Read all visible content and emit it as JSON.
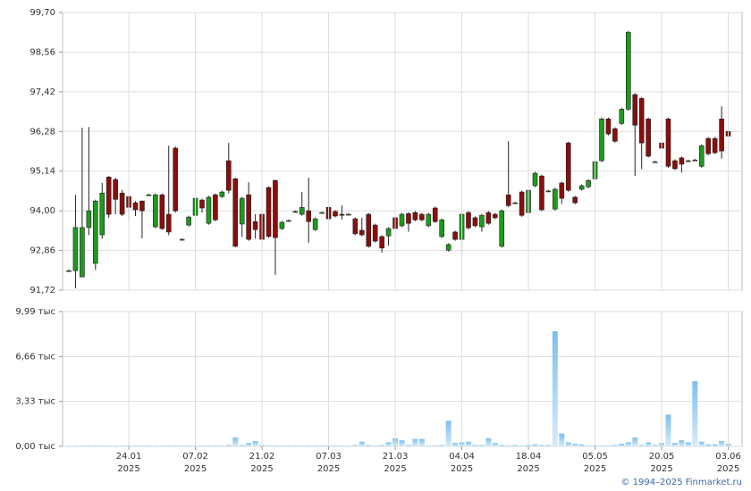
{
  "chart_data": [
    {
      "type": "candlestick",
      "up_color": "#1e9a1e",
      "down_color": "#8b0d0d",
      "ylim": [
        91.72,
        99.7
      ],
      "yticks": [
        {
          "value": 91.72,
          "label": "91,72"
        },
        {
          "value": 92.86,
          "label": "92,86"
        },
        {
          "value": 94.0,
          "label": "94,00"
        },
        {
          "value": 95.14,
          "label": "95,14"
        },
        {
          "value": 96.28,
          "label": "96,28"
        },
        {
          "value": 97.42,
          "label": "97,42"
        },
        {
          "value": 98.56,
          "label": "98,56"
        },
        {
          "value": 99.7,
          "label": "99,70"
        }
      ],
      "grid": true,
      "open": [
        92.28,
        92.28,
        92.1,
        93.52,
        92.49,
        93.31,
        94.97,
        94.9,
        94.51,
        94.41,
        94.23,
        94.28,
        94.46,
        93.54,
        94.46,
        93.9,
        95.8,
        93.18,
        93.59,
        93.87,
        94.31,
        93.64,
        94.46,
        94.41,
        95.44,
        94.92,
        93.62,
        94.46,
        93.69,
        93.9,
        94.67,
        94.87,
        93.49,
        93.72,
        93.98,
        93.9,
        94.0,
        93.46,
        93.95,
        94.1,
        93.98,
        93.9,
        93.9,
        93.77,
        93.44,
        93.9,
        93.59,
        93.26,
        93.28,
        93.8,
        93.57,
        93.92,
        93.95,
        93.9,
        93.57,
        94.08,
        93.26,
        92.87,
        93.39,
        93.18,
        93.95,
        93.8,
        93.54,
        93.95,
        93.9,
        92.98,
        94.46,
        94.23,
        94.54,
        93.95,
        94.72,
        95.0,
        94.57,
        94.05,
        94.8,
        95.95,
        94.39,
        94.62,
        94.69,
        94.92,
        95.44,
        96.64,
        96.36,
        96.51,
        96.92,
        97.34,
        97.23,
        96.64,
        95.41,
        95.95,
        96.64,
        95.44,
        95.52,
        95.44,
        95.46,
        95.28,
        96.08,
        96.08,
        96.64,
        96.28
      ],
      "high": [
        92.31,
        94.46,
        96.39,
        96.41,
        94.32,
        94.8,
        95.0,
        94.95,
        94.6,
        94.45,
        94.28,
        94.3,
        94.49,
        94.5,
        94.5,
        95.87,
        95.85,
        93.21,
        93.86,
        94.4,
        94.35,
        94.43,
        94.5,
        94.58,
        95.95,
        94.95,
        94.4,
        94.82,
        93.9,
        93.95,
        94.7,
        94.9,
        93.71,
        93.75,
        94.01,
        94.54,
        94.95,
        93.81,
        93.98,
        94.14,
        94.02,
        94.15,
        93.93,
        93.81,
        93.8,
        93.94,
        93.63,
        93.3,
        93.53,
        93.84,
        93.94,
        93.96,
        93.99,
        93.94,
        93.94,
        94.12,
        93.78,
        93.07,
        93.43,
        93.94,
        93.99,
        93.84,
        93.91,
        93.99,
        93.94,
        94.04,
        96.0,
        94.26,
        94.58,
        94.63,
        95.12,
        95.04,
        94.6,
        94.66,
        94.84,
        95.99,
        94.43,
        94.76,
        94.91,
        95.45,
        96.68,
        96.68,
        96.4,
        96.96,
        99.17,
        97.38,
        97.27,
        96.68,
        95.44,
        95.99,
        96.68,
        95.48,
        95.56,
        95.47,
        95.49,
        95.91,
        96.12,
        96.12,
        97.0,
        96.32
      ],
      "low": [
        92.25,
        91.77,
        92.1,
        93.3,
        92.3,
        93.2,
        93.8,
        93.9,
        93.85,
        93.7,
        93.85,
        93.21,
        94.43,
        93.5,
        93.45,
        93.3,
        93.95,
        93.15,
        93.55,
        93.83,
        93.95,
        93.6,
        93.7,
        94.37,
        94.5,
        92.95,
        93.25,
        93.14,
        93.2,
        93.14,
        93.22,
        92.16,
        93.45,
        93.69,
        93.95,
        93.86,
        93.08,
        93.42,
        93.92,
        93.73,
        93.81,
        93.75,
        93.87,
        93.3,
        93.27,
        92.94,
        93.09,
        92.8,
        93.0,
        93.45,
        93.53,
        93.4,
        93.7,
        93.7,
        93.53,
        93.65,
        93.22,
        92.83,
        93.14,
        92.72,
        93.47,
        93.53,
        93.4,
        93.6,
        93.76,
        92.94,
        94.11,
        94.2,
        93.83,
        93.91,
        94.68,
        93.99,
        94.54,
        94.01,
        94.2,
        94.55,
        94.19,
        94.58,
        94.65,
        94.88,
        95.4,
        96.17,
        95.96,
        96.47,
        96.88,
        95.0,
        95.2,
        95.53,
        95.38,
        95.76,
        95.24,
        95.17,
        95.1,
        95.41,
        95.43,
        95.24,
        95.6,
        95.63,
        95.5,
        96.11
      ],
      "close": [
        92.28,
        93.52,
        93.52,
        94.0,
        94.28,
        94.51,
        93.9,
        94.33,
        93.9,
        94.1,
        94.03,
        94.0,
        94.46,
        94.46,
        93.49,
        93.39,
        94.0,
        93.18,
        93.82,
        94.36,
        94.08,
        94.39,
        93.74,
        94.54,
        94.59,
        92.98,
        94.36,
        93.18,
        93.46,
        93.18,
        93.26,
        93.23,
        93.67,
        93.72,
        93.98,
        94.1,
        93.69,
        93.77,
        93.95,
        93.77,
        93.85,
        93.87,
        93.9,
        93.34,
        93.31,
        92.98,
        93.13,
        92.93,
        93.49,
        93.49,
        93.9,
        93.64,
        93.74,
        93.74,
        93.9,
        93.69,
        93.74,
        93.03,
        93.18,
        93.9,
        93.51,
        93.57,
        93.87,
        93.64,
        93.8,
        94.0,
        94.15,
        94.23,
        93.87,
        94.59,
        95.08,
        94.03,
        94.57,
        94.62,
        94.36,
        94.59,
        94.23,
        94.72,
        94.87,
        95.41,
        96.64,
        96.21,
        96.0,
        96.92,
        99.13,
        96.46,
        95.95,
        95.57,
        95.41,
        95.8,
        95.28,
        95.21,
        95.34,
        95.44,
        95.46,
        95.87,
        95.64,
        95.67,
        95.72,
        96.15
      ]
    },
    {
      "type": "bar",
      "color": "#9fcff2",
      "categories": [
        null,
        null,
        null,
        null,
        null,
        null,
        null,
        null,
        null,
        "24.01\n2025",
        null,
        null,
        null,
        null,
        null,
        null,
        null,
        null,
        null,
        "07.02\n2025",
        null,
        null,
        null,
        null,
        null,
        null,
        null,
        null,
        null,
        "21.02\n2025",
        null,
        null,
        null,
        null,
        null,
        null,
        null,
        null,
        null,
        "07.03\n2025",
        null,
        null,
        null,
        null,
        null,
        null,
        null,
        null,
        null,
        "21.03\n2025",
        null,
        null,
        null,
        null,
        null,
        null,
        null,
        null,
        null,
        "04.04\n2025",
        null,
        null,
        null,
        null,
        null,
        null,
        null,
        null,
        null,
        "18.04\n2025",
        null,
        null,
        null,
        null,
        null,
        null,
        null,
        null,
        null,
        "05.05\n2025",
        null,
        null,
        null,
        null,
        null,
        null,
        null,
        null,
        null,
        "20.05\n2025",
        null,
        null,
        null,
        null,
        null,
        null,
        null,
        null,
        null,
        "03.06\n2025"
      ],
      "values": [
        0.05,
        0.05,
        0.05,
        0.05,
        0.05,
        0.05,
        0.05,
        0.05,
        0.05,
        0.05,
        0.05,
        0.05,
        0.05,
        0.05,
        0.05,
        0.05,
        0.05,
        0.05,
        0.05,
        0.05,
        0.05,
        0.05,
        0.05,
        0.05,
        0.1,
        0.65,
        0.1,
        0.25,
        0.4,
        0.1,
        0.05,
        0.05,
        0.05,
        0.05,
        0.05,
        0.05,
        0.05,
        0.05,
        0.05,
        0.05,
        0.05,
        0.05,
        0.05,
        0.1,
        0.35,
        0.1,
        0.05,
        0.1,
        0.3,
        0.6,
        0.45,
        0.1,
        0.55,
        0.55,
        0.05,
        0.05,
        0.1,
        1.9,
        0.25,
        0.3,
        0.35,
        0.1,
        0.1,
        0.6,
        0.25,
        0.1,
        0.05,
        0.1,
        0.05,
        0.1,
        0.15,
        0.1,
        0.1,
        8.53,
        0.95,
        0.3,
        0.2,
        0.15,
        0.05,
        0.05,
        0.05,
        0.05,
        0.1,
        0.2,
        0.3,
        0.65,
        0.1,
        0.3,
        0.1,
        0.25,
        2.35,
        0.25,
        0.45,
        0.3,
        4.83,
        0.35,
        0.15,
        0.15,
        0.4,
        0.2
      ],
      "ylim": [
        0,
        9.99
      ],
      "yticks": [
        {
          "value": 0,
          "label": "0,00 тыс"
        },
        {
          "value": 3.33,
          "label": "3,33 тыс"
        },
        {
          "value": 6.66,
          "label": "6,66 тыс"
        },
        {
          "value": 9.99,
          "label": "9,99 тыс"
        }
      ],
      "grid": true
    }
  ],
  "footer": "© 1994–2025 Finmarket.ru"
}
